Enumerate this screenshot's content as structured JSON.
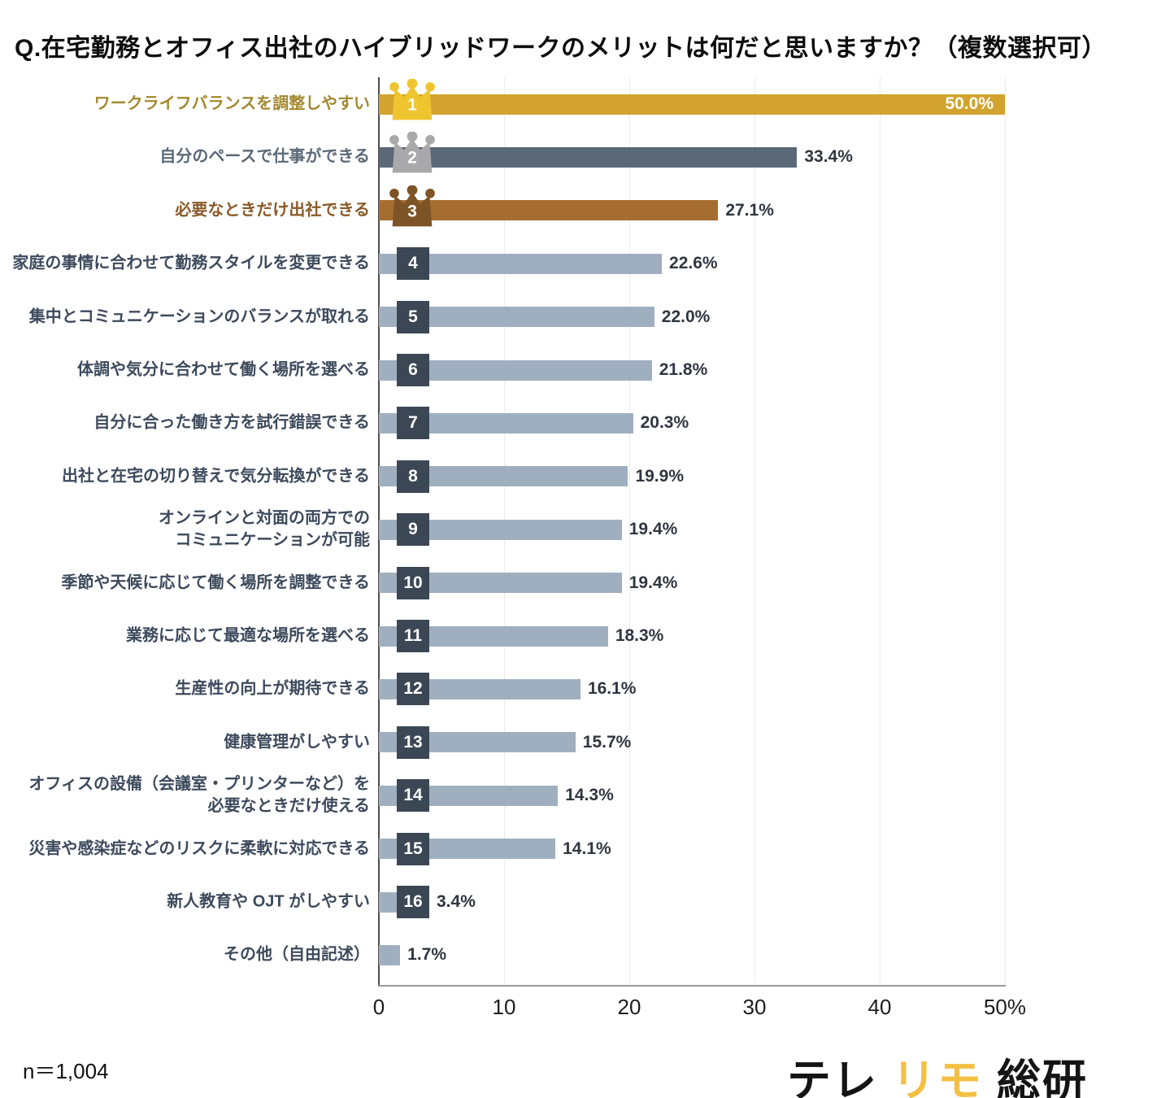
{
  "chart_data": {
    "type": "bar",
    "orientation": "horizontal",
    "title": "Q.在宅勤務とオフィス出社のハイブリッドワークのメリットは何だと思いますか？（複数選択可）",
    "xlim": [
      0,
      50
    ],
    "x_ticks": [
      "0",
      "10",
      "20",
      "30",
      "40",
      "50%"
    ],
    "grid": true,
    "legend": "none",
    "rows": [
      {
        "rank": 1,
        "tier": "gold",
        "label": "ワークライフバランスを調整しやすい",
        "value": 50.0,
        "value_label": "50.0%",
        "value_inside": true
      },
      {
        "rank": 2,
        "tier": "silver",
        "label": "自分のペースで仕事ができる",
        "value": 33.4,
        "value_label": "33.4%"
      },
      {
        "rank": 3,
        "tier": "bronze",
        "label": "必要なときだけ出社できる",
        "value": 27.1,
        "value_label": "27.1%"
      },
      {
        "rank": 4,
        "tier": "default",
        "label": "家庭の事情に合わせて勤務スタイルを変更できる",
        "value": 22.6,
        "value_label": "22.6%"
      },
      {
        "rank": 5,
        "tier": "default",
        "label": "集中とコミュニケーションのバランスが取れる",
        "value": 22.0,
        "value_label": "22.0%"
      },
      {
        "rank": 6,
        "tier": "default",
        "label": "体調や気分に合わせて働く場所を選べる",
        "value": 21.8,
        "value_label": "21.8%"
      },
      {
        "rank": 7,
        "tier": "default",
        "label": "自分に合った働き方を試行錯誤できる",
        "value": 20.3,
        "value_label": "20.3%"
      },
      {
        "rank": 8,
        "tier": "default",
        "label": "出社と在宅の切り替えで気分転換ができる",
        "value": 19.9,
        "value_label": "19.9%"
      },
      {
        "rank": 9,
        "tier": "default",
        "label": "オンラインと対面の両方での\nコミュニケーションが可能",
        "value": 19.4,
        "value_label": "19.4%"
      },
      {
        "rank": 10,
        "tier": "default",
        "label": "季節や天候に応じて働く場所を調整できる",
        "value": 19.4,
        "value_label": "19.4%"
      },
      {
        "rank": 11,
        "tier": "default",
        "label": "業務に応じて最適な場所を選べる",
        "value": 18.3,
        "value_label": "18.3%"
      },
      {
        "rank": 12,
        "tier": "default",
        "label": "生産性の向上が期待できる",
        "value": 16.1,
        "value_label": "16.1%"
      },
      {
        "rank": 13,
        "tier": "default",
        "label": "健康管理がしやすい",
        "value": 15.7,
        "value_label": "15.7%"
      },
      {
        "rank": 14,
        "tier": "default",
        "label": "オフィスの設備（会議室・プリンターなど）を\n必要なときだけ使える",
        "value": 14.3,
        "value_label": "14.3%"
      },
      {
        "rank": 15,
        "tier": "default",
        "label": "災害や感染症などのリスクに柔軟に対応できる",
        "value": 14.1,
        "value_label": "14.1%"
      },
      {
        "rank": 16,
        "tier": "default",
        "label": "新人教育や OJT がしやすい",
        "value": 3.4,
        "value_label": "3.4%"
      },
      {
        "rank": null,
        "tier": "default",
        "label": "その他（自由記述）",
        "value": 1.7,
        "value_label": "1.7%"
      }
    ],
    "colors": {
      "gold_bar": "#D2A42F",
      "gold_crown": "#EFC52F",
      "gold_label": "#A3892E",
      "silver_bar": "#5B6877",
      "silver_crown": "#A9A9AB",
      "silver_label": "#5B6877",
      "bronze_bar": "#A66D30",
      "bronze_crown": "#7D5426",
      "bronze_label": "#8A5A28",
      "default_bar": "#9FAFC0",
      "badge": "#3B4754",
      "default_label": "#3D4A5C",
      "value_text": "#2F3640",
      "value_inside_text": "#FFFFFF"
    }
  },
  "footer": {
    "sample_label": "n＝1,004",
    "logo": {
      "part1": "テレ",
      "part2": "リモ",
      "part3": "総研",
      "accent_color": "#F3C043"
    }
  }
}
